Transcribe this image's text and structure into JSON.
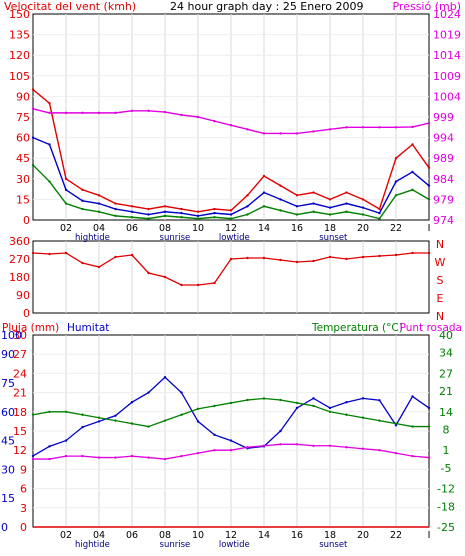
{
  "colors": {
    "wind": "#e00000",
    "wind_avg": "#0000c8",
    "wind_min": "#008000",
    "pressure": "#e000e0",
    "direction": "#e00000",
    "rain": "#e00000",
    "humidity": "#0000c8",
    "temperature": "#008000",
    "dewpoint": "#e000e0"
  },
  "chart_data": [
    {
      "type": "line",
      "title": "24 hour graph day : 25 Enero 2009",
      "left_axis_title": "Velocitat del vent (kmh)",
      "right_axis_title": "Pressió (mb)",
      "ylim": [
        0,
        150
      ],
      "y2lim": [
        974,
        1024
      ],
      "yticks": [
        "0",
        "15",
        "30",
        "45",
        "60",
        "75",
        "90",
        "105",
        "120",
        "135",
        "150"
      ],
      "y2ticks": [
        "974",
        "979",
        "984",
        "989",
        "994",
        "999",
        "1004",
        "1009",
        "1014",
        "1019",
        "1024"
      ],
      "xticks": [
        "02",
        "04",
        "06",
        "08",
        "10",
        "12",
        "14",
        "16",
        "18",
        "20",
        "22",
        "I"
      ],
      "events": [
        "hightide",
        "sunrise",
        "lowtide",
        "sunset"
      ],
      "x_hours": [
        0,
        1,
        2,
        3,
        4,
        5,
        6,
        7,
        8,
        9,
        10,
        11,
        12,
        13,
        14,
        15,
        16,
        17,
        18,
        19,
        20,
        21,
        22,
        23,
        24
      ],
      "series": [
        {
          "key": "wind_gust",
          "axis": "left",
          "values": [
            95,
            85,
            30,
            22,
            18,
            12,
            10,
            8,
            10,
            8,
            6,
            8,
            7,
            18,
            32,
            25,
            18,
            20,
            15,
            20,
            15,
            8,
            45,
            55,
            38
          ]
        },
        {
          "key": "wind_avg",
          "axis": "left",
          "values": [
            60,
            55,
            22,
            14,
            12,
            8,
            6,
            4,
            6,
            5,
            3,
            5,
            4,
            10,
            20,
            15,
            10,
            12,
            9,
            12,
            9,
            5,
            28,
            35,
            25
          ]
        },
        {
          "key": "wind_min",
          "axis": "left",
          "values": [
            40,
            28,
            12,
            8,
            6,
            3,
            2,
            1,
            3,
            2,
            1,
            2,
            1,
            4,
            10,
            7,
            4,
            6,
            4,
            6,
            4,
            1,
            18,
            22,
            15
          ]
        },
        {
          "key": "pressure",
          "axis": "right",
          "values": [
            1001,
            1000,
            1000,
            1000,
            1000,
            1000,
            1000.5,
            1000.5,
            1000.2,
            999.5,
            999,
            998,
            997,
            996,
            995,
            995,
            995,
            995.5,
            996,
            996.5,
            996.5,
            996.5,
            996.5,
            996.6,
            997.5
          ]
        }
      ]
    },
    {
      "type": "line",
      "right_labels": [
        "N",
        "W",
        "S",
        "E",
        "N"
      ],
      "ylim": [
        0,
        360
      ],
      "yticks": [
        "0",
        "90",
        "180",
        "270",
        "360"
      ],
      "x_hours": [
        0,
        1,
        2,
        3,
        4,
        5,
        6,
        7,
        8,
        9,
        10,
        11,
        12,
        13,
        14,
        15,
        16,
        17,
        18,
        19,
        20,
        21,
        22,
        23,
        24
      ],
      "series": [
        {
          "key": "wind_direction",
          "values": [
            300,
            295,
            300,
            250,
            230,
            280,
            290,
            200,
            180,
            140,
            140,
            150,
            270,
            275,
            275,
            265,
            255,
            260,
            280,
            270,
            280,
            285,
            290,
            300,
            300
          ]
        }
      ]
    },
    {
      "type": "line",
      "left_axis_title": "Pluja (mm)",
      "left_axis_title2": "Humitat",
      "right_axis_title": "Temperatura (°C)",
      "right_axis_title2": "Punt rosada",
      "ylim": [
        0,
        100
      ],
      "rain_ticks": [
        "0",
        "3",
        "6",
        "9",
        "12",
        "15",
        "18",
        "21",
        "24",
        "27",
        "30"
      ],
      "hum_ticks": [
        "0",
        "15",
        "30",
        "45",
        "60",
        "75",
        "90",
        "100"
      ],
      "temp_ticks": [
        "-25",
        "-18",
        "-12",
        "-5",
        "1",
        "8",
        "14",
        "21",
        "27",
        "34",
        "40"
      ],
      "temp_lim": [
        -25,
        40
      ],
      "xticks": [
        "02",
        "04",
        "06",
        "08",
        "10",
        "12",
        "14",
        "16",
        "18",
        "20",
        "22",
        "I"
      ],
      "events": [
        "hightide",
        "sunrise",
        "lowtide",
        "sunset"
      ],
      "x_hours": [
        0,
        1,
        2,
        3,
        4,
        5,
        6,
        7,
        8,
        9,
        10,
        11,
        12,
        13,
        14,
        15,
        16,
        17,
        18,
        19,
        20,
        21,
        22,
        23,
        24
      ],
      "series": [
        {
          "key": "humidity",
          "axis": "hum",
          "values": [
            37,
            42,
            45,
            52,
            55,
            58,
            65,
            70,
            78,
            70,
            55,
            48,
            45,
            41,
            42,
            50,
            62,
            67,
            62,
            65,
            67,
            66,
            53,
            68,
            62
          ]
        },
        {
          "key": "temperature",
          "axis": "temp",
          "values": [
            13,
            14,
            14,
            13,
            12,
            11,
            10,
            9,
            11,
            13,
            15,
            16,
            17,
            18,
            18.5,
            18,
            17,
            16,
            14,
            13,
            12,
            11,
            10,
            9,
            9
          ]
        },
        {
          "key": "dewpoint",
          "axis": "temp",
          "values": [
            -2,
            -2,
            -1,
            -1,
            -1.5,
            -1.5,
            -1,
            -1.5,
            -2,
            -1,
            0,
            1,
            1,
            2,
            2.5,
            3,
            3,
            2.5,
            2.5,
            2,
            1.5,
            1,
            0,
            -1,
            -1.5
          ]
        },
        {
          "key": "rain",
          "axis": "rain",
          "values": [
            0,
            0,
            0,
            0,
            0,
            0,
            0,
            0,
            0,
            0,
            0,
            0,
            0,
            0,
            0,
            0,
            0,
            0,
            0,
            0,
            0,
            0,
            0,
            0,
            0
          ]
        }
      ]
    }
  ]
}
